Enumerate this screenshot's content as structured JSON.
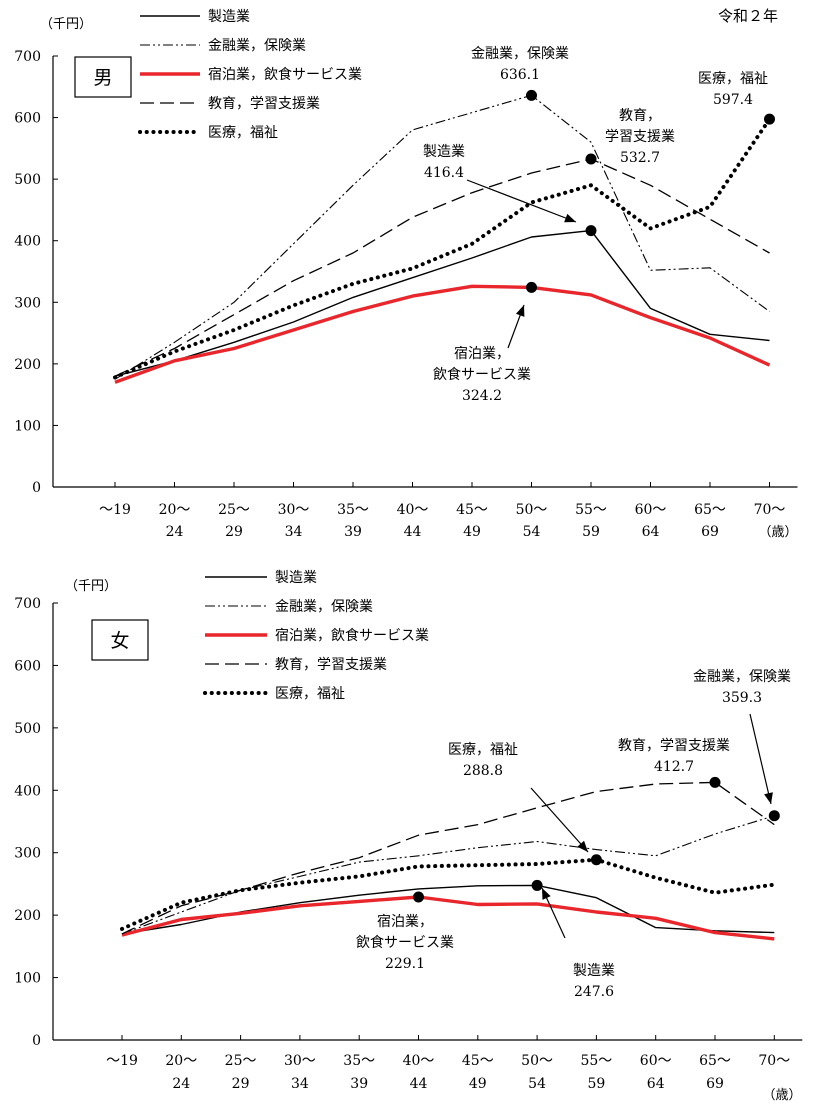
{
  "year_label": "令和２年",
  "chart_data": [
    {
      "type": "line",
      "panel": "男",
      "ylabel": "（千円）",
      "xunit": "（歳）",
      "ylim": [
        0,
        700
      ],
      "yticks": [
        "0",
        "100",
        "200",
        "300",
        "400",
        "500",
        "600",
        "700"
      ],
      "categories": [
        {
          "top": "～19",
          "bottom": ""
        },
        {
          "top": "20～",
          "bottom": "24"
        },
        {
          "top": "25～",
          "bottom": "29"
        },
        {
          "top": "30～",
          "bottom": "34"
        },
        {
          "top": "35～",
          "bottom": "39"
        },
        {
          "top": "40～",
          "bottom": "44"
        },
        {
          "top": "45～",
          "bottom": "49"
        },
        {
          "top": "50～",
          "bottom": "54"
        },
        {
          "top": "55～",
          "bottom": "59"
        },
        {
          "top": "60～",
          "bottom": "64"
        },
        {
          "top": "65～",
          "bottom": "69"
        },
        {
          "top": "70～",
          "bottom": ""
        }
      ],
      "series": [
        {
          "name": "製造業",
          "style": "solid",
          "color": "#000000",
          "values": [
            180,
            205,
            235,
            268,
            308,
            340,
            372,
            406,
            416.4,
            290,
            248,
            238
          ]
        },
        {
          "name": "金融業，保険業",
          "style": "dashdotdot",
          "color": "#000000",
          "values": [
            175,
            235,
            300,
            395,
            490,
            580,
            608,
            636.1,
            560,
            352,
            356,
            285
          ]
        },
        {
          "name": "宿泊業，飲食サービス業",
          "style": "thick",
          "color": "#e8262b",
          "values": [
            170,
            205,
            225,
            255,
            285,
            310,
            326,
            324.2,
            312,
            275,
            242,
            198
          ]
        },
        {
          "name": "教育，学習支援業",
          "style": "longdash",
          "color": "#000000",
          "values": [
            180,
            225,
            280,
            335,
            380,
            438,
            478,
            510,
            532.7,
            490,
            435,
            380
          ]
        },
        {
          "name": "医療，福祉",
          "style": "dotted",
          "color": "#000000",
          "values": [
            178,
            220,
            255,
            295,
            330,
            355,
            395,
            462,
            490,
            420,
            455,
            597.4
          ]
        }
      ],
      "annotations": [
        {
          "lines": [
            "金融業，保険業",
            "636.1"
          ],
          "series": "金融業，保険業",
          "index": 7
        },
        {
          "lines": [
            "医療，福祉",
            "597.4"
          ],
          "series": "医療，福祉",
          "index": 11
        },
        {
          "lines": [
            "教育，",
            "学習支援業",
            "532.7"
          ],
          "series": "教育，学習支援業",
          "index": 8
        },
        {
          "lines": [
            "製造業",
            "416.4"
          ],
          "series": "製造業",
          "index": 8
        },
        {
          "lines": [
            "宿泊業，",
            "飲食サービス業",
            "324.2"
          ],
          "series": "宿泊業，飲食サービス業",
          "index": 7
        }
      ]
    },
    {
      "type": "line",
      "panel": "女",
      "ylabel": "（千円）",
      "xunit": "（歳）",
      "ylim": [
        0,
        700
      ],
      "yticks": [
        "0",
        "100",
        "200",
        "300",
        "400",
        "500",
        "600",
        "700"
      ],
      "categories": [
        {
          "top": "～19",
          "bottom": ""
        },
        {
          "top": "20～",
          "bottom": "24"
        },
        {
          "top": "25～",
          "bottom": "29"
        },
        {
          "top": "30～",
          "bottom": "34"
        },
        {
          "top": "35～",
          "bottom": "39"
        },
        {
          "top": "40～",
          "bottom": "44"
        },
        {
          "top": "45～",
          "bottom": "49"
        },
        {
          "top": "50～",
          "bottom": "54"
        },
        {
          "top": "55～",
          "bottom": "59"
        },
        {
          "top": "60～",
          "bottom": "64"
        },
        {
          "top": "65～",
          "bottom": "69"
        },
        {
          "top": "70～",
          "bottom": ""
        }
      ],
      "series": [
        {
          "name": "製造業",
          "style": "solid",
          "color": "#000000",
          "values": [
            170,
            185,
            205,
            220,
            232,
            242,
            247,
            247.6,
            228,
            180,
            175,
            172
          ]
        },
        {
          "name": "金融業，保険業",
          "style": "dashdotdot",
          "color": "#000000",
          "values": [
            170,
            205,
            240,
            262,
            285,
            295,
            308,
            318,
            305,
            295,
            330,
            359.3
          ]
        },
        {
          "name": "宿泊業，飲食サービス業",
          "style": "thick",
          "color": "#e8262b",
          "values": [
            168,
            193,
            203,
            215,
            222,
            229.1,
            217,
            218,
            205,
            195,
            172,
            162
          ]
        },
        {
          "name": "教育，学習支援業",
          "style": "longdash",
          "color": "#000000",
          "values": [
            170,
            215,
            240,
            268,
            292,
            328,
            345,
            372,
            398,
            410,
            412.7,
            345
          ]
        },
        {
          "name": "医療，福祉",
          "style": "dotted",
          "color": "#000000",
          "values": [
            178,
            220,
            240,
            252,
            262,
            278,
            280,
            282,
            288.8,
            260,
            236,
            249
          ]
        }
      ],
      "annotations": [
        {
          "lines": [
            "金融業，保険業",
            "359.3"
          ],
          "series": "金融業，保険業",
          "index": 11
        },
        {
          "lines": [
            "教育，学習支援業",
            "412.7"
          ],
          "series": "教育，学習支援業",
          "index": 10
        },
        {
          "lines": [
            "医療，福祉",
            "288.8"
          ],
          "series": "医療，福祉",
          "index": 8
        },
        {
          "lines": [
            "宿泊業，",
            "飲食サービス業",
            "229.1"
          ],
          "series": "宿泊業，飲食サービス業",
          "index": 5
        },
        {
          "lines": [
            "製造業",
            "247.6"
          ],
          "series": "製造業",
          "index": 7
        }
      ]
    }
  ]
}
